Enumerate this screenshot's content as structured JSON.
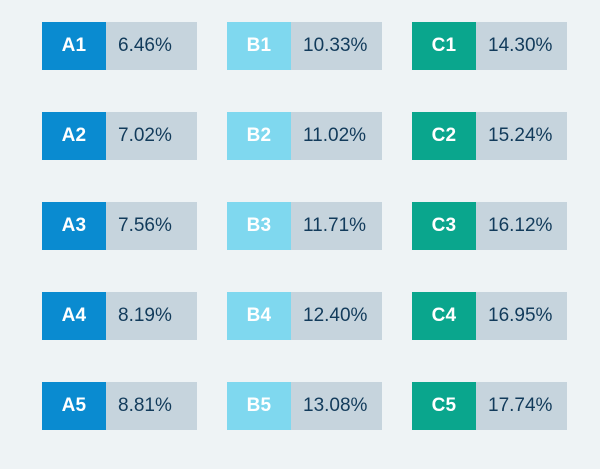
{
  "colors": {
    "A": "#0a8bd0",
    "B": "#7fd8ef",
    "C": "#0aa68d",
    "value_bg": "#c6d4dd",
    "text": "#123b5b",
    "background": "#eef3f5"
  },
  "groups": [
    {
      "key": "A",
      "items": [
        {
          "code": "A1",
          "value": "6.46%"
        },
        {
          "code": "A2",
          "value": "7.02%"
        },
        {
          "code": "A3",
          "value": "7.56%"
        },
        {
          "code": "A4",
          "value": "8.19%"
        },
        {
          "code": "A5",
          "value": "8.81%"
        }
      ]
    },
    {
      "key": "B",
      "items": [
        {
          "code": "B1",
          "value": "10.33%"
        },
        {
          "code": "B2",
          "value": "11.02%"
        },
        {
          "code": "B3",
          "value": "11.71%"
        },
        {
          "code": "B4",
          "value": "12.40%"
        },
        {
          "code": "B5",
          "value": "13.08%"
        }
      ]
    },
    {
      "key": "C",
      "items": [
        {
          "code": "C1",
          "value": "14.30%"
        },
        {
          "code": "C2",
          "value": "15.24%"
        },
        {
          "code": "C3",
          "value": "16.12%"
        },
        {
          "code": "C4",
          "value": "16.95%"
        },
        {
          "code": "C5",
          "value": "17.74%"
        }
      ]
    }
  ]
}
